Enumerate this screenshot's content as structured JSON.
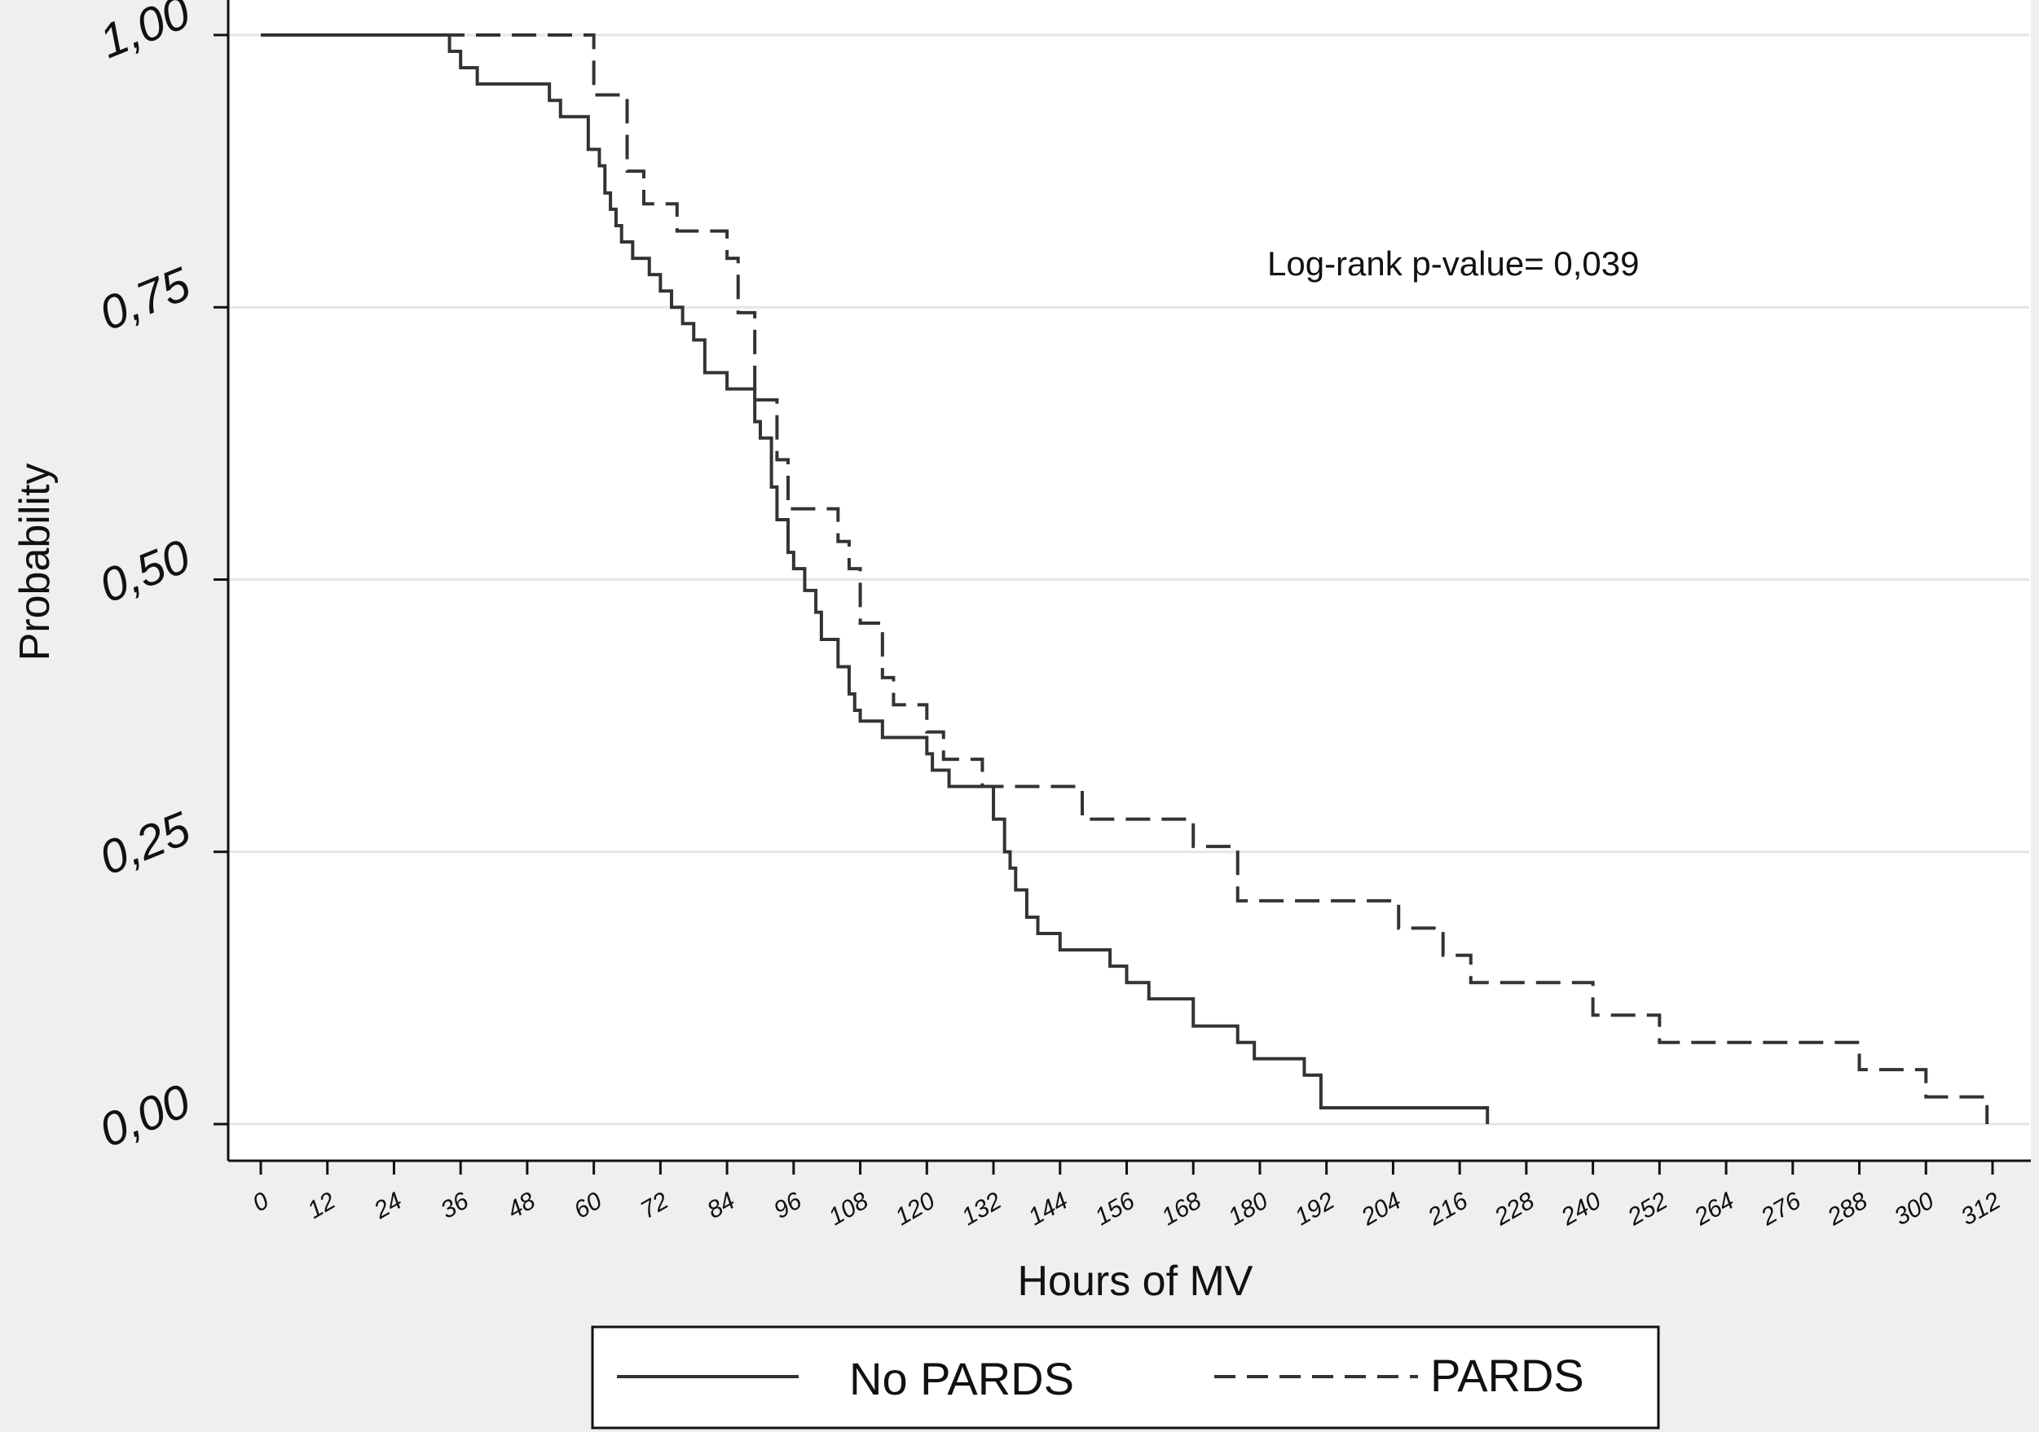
{
  "chart_data": {
    "type": "line",
    "step": true,
    "xlabel": "Hours of MV",
    "ylabel": "Probability",
    "annotation": "Log-rank p-value= 0,039",
    "xlim": [
      0,
      312
    ],
    "ylim": [
      0,
      1
    ],
    "x_ticks": [
      0,
      12,
      24,
      36,
      48,
      60,
      72,
      84,
      96,
      108,
      120,
      132,
      144,
      156,
      168,
      180,
      192,
      204,
      216,
      228,
      240,
      252,
      264,
      276,
      288,
      300,
      312
    ],
    "x_tick_labels": [
      "0",
      "12",
      "24",
      "36",
      "48",
      "60",
      "72",
      "84",
      "96",
      "108",
      "120",
      "132",
      "144",
      "156",
      "168",
      "180",
      "192",
      "204",
      "216",
      "228",
      "240",
      "252",
      "264",
      "276",
      "288",
      "300",
      "312"
    ],
    "y_ticks": [
      0,
      0.25,
      0.5,
      0.75,
      1
    ],
    "y_tick_labels": [
      "0,00",
      "0,25",
      "0,50",
      "0,75",
      "1,00"
    ],
    "grid": "horizontal",
    "legend_position": "bottom",
    "series": [
      {
        "name": "No PARDS",
        "style": "solid",
        "color": "#333333",
        "x": [
          0,
          34,
          36,
          39,
          52,
          54,
          59,
          61,
          62,
          63,
          64,
          65,
          67,
          70,
          72,
          74,
          76,
          78,
          80,
          82,
          84,
          89,
          90,
          92,
          93,
          95,
          96,
          98,
          100,
          101,
          104,
          106,
          107,
          108,
          109,
          112,
          120,
          121,
          122,
          124,
          128,
          132,
          134,
          135,
          136,
          138,
          140,
          144,
          153,
          156,
          160,
          168,
          176,
          179,
          188,
          191,
          221
        ],
        "y": [
          1.0,
          0.985,
          0.97,
          0.955,
          0.94,
          0.925,
          0.895,
          0.88,
          0.855,
          0.84,
          0.825,
          0.81,
          0.795,
          0.78,
          0.765,
          0.75,
          0.735,
          0.72,
          0.69,
          0.69,
          0.675,
          0.645,
          0.63,
          0.585,
          0.555,
          0.525,
          0.51,
          0.49,
          0.47,
          0.445,
          0.42,
          0.395,
          0.38,
          0.37,
          0.37,
          0.355,
          0.34,
          0.325,
          0.325,
          0.31,
          0.31,
          0.28,
          0.25,
          0.235,
          0.215,
          0.19,
          0.175,
          0.16,
          0.145,
          0.13,
          0.115,
          0.09,
          0.075,
          0.06,
          0.045,
          0.015,
          0.0
        ]
      },
      {
        "name": "PARDS",
        "style": "dashed",
        "color": "#333333",
        "x": [
          0,
          60,
          62,
          66,
          69,
          72,
          75,
          84,
          86,
          89,
          93,
          95,
          98,
          104,
          106,
          108,
          112,
          114,
          120,
          123,
          130,
          138,
          148,
          168,
          176,
          205,
          213,
          218,
          240,
          252,
          288,
          300,
          311
        ],
        "y": [
          1.0,
          0.945,
          0.945,
          0.875,
          0.845,
          0.845,
          0.82,
          0.795,
          0.745,
          0.665,
          0.61,
          0.565,
          0.565,
          0.535,
          0.51,
          0.46,
          0.41,
          0.385,
          0.36,
          0.335,
          0.31,
          0.31,
          0.28,
          0.255,
          0.205,
          0.18,
          0.155,
          0.13,
          0.1,
          0.075,
          0.05,
          0.025,
          0.0
        ]
      }
    ]
  }
}
